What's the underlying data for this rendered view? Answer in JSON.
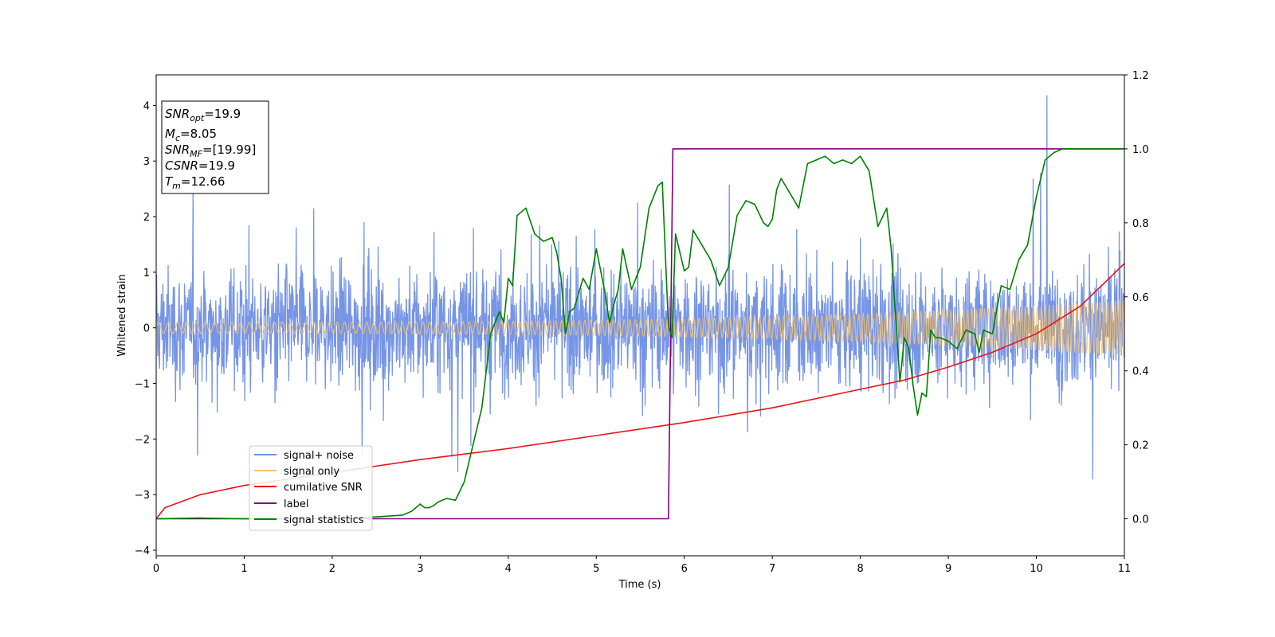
{
  "chart_data": {
    "type": "line",
    "xlabel": "Time (s)",
    "ylabel": "Whitened strain",
    "xlim": [
      0,
      11
    ],
    "ylim": [
      -4.1,
      4.55
    ],
    "y2lim": [
      -0.1,
      1.2
    ],
    "xticks": [
      0,
      1,
      2,
      3,
      4,
      5,
      6,
      7,
      8,
      9,
      10,
      11
    ],
    "yticks": [
      -4,
      -3,
      -2,
      -1,
      0,
      1,
      2,
      3,
      4
    ],
    "y2ticks": [
      "0.0",
      "0.2",
      "0.4",
      "0.6",
      "0.8",
      "1.0",
      "1.2"
    ],
    "grid": false,
    "legend_position": "lower-left",
    "annotation": [
      {
        "base": "SNR",
        "sub": "opt",
        "value": "=19.9"
      },
      {
        "base": "M",
        "sub": "c",
        "value": "=8.05"
      },
      {
        "base": "SNR",
        "sub": "MF",
        "value": "=[19.99]"
      },
      {
        "base": "CSNR",
        "sub": "",
        "value": "=19.9"
      },
      {
        "base": "T",
        "sub": "m",
        "value": "=12.66"
      }
    ],
    "series": [
      {
        "name": "signal+ noise",
        "color": "#6f8fe6",
        "axis": "left",
        "kind": "whitened noisy strain, amplitude about ±1.5 with spikes to about ±3.7, max 4.18 near t=10.1"
      },
      {
        "name": "signal only",
        "color": "#f5c26b",
        "axis": "left",
        "kind": "chirp oscillation, amplitude 0.1 growing to 0.5 at t=11"
      },
      {
        "name": "cumilative SNR",
        "color": "#e8141a",
        "axis": "right",
        "x": [
          0,
          0.1,
          0.5,
          1,
          2,
          3,
          4,
          5,
          6,
          7,
          8,
          8.5,
          9,
          9.5,
          10,
          10.5,
          11
        ],
        "values": [
          0.0,
          0.03,
          0.065,
          0.09,
          0.125,
          0.16,
          0.19,
          0.225,
          0.26,
          0.3,
          0.35,
          0.375,
          0.41,
          0.45,
          0.5,
          0.575,
          0.69
        ]
      },
      {
        "name": "label",
        "color": "#800080",
        "axis": "right",
        "x": [
          0,
          5.82,
          5.87,
          11
        ],
        "values": [
          0.0,
          0.0,
          1.0,
          1.0
        ]
      },
      {
        "name": "signal statistics",
        "color": "#008000",
        "axis": "right",
        "x": [
          0,
          0.5,
          1,
          1.5,
          2,
          2.5,
          2.8,
          2.9,
          3.0,
          3.05,
          3.1,
          3.15,
          3.2,
          3.3,
          3.4,
          3.5,
          3.6,
          3.7,
          3.8,
          3.9,
          3.95,
          4.0,
          4.05,
          4.1,
          4.2,
          4.3,
          4.4,
          4.5,
          4.55,
          4.6,
          4.65,
          4.7,
          4.75,
          4.85,
          4.92,
          5.0,
          5.05,
          5.1,
          5.15,
          5.2,
          5.25,
          5.3,
          5.4,
          5.5,
          5.6,
          5.7,
          5.75,
          5.82,
          5.86,
          5.9,
          6.0,
          6.05,
          6.1,
          6.2,
          6.3,
          6.4,
          6.5,
          6.6,
          6.7,
          6.8,
          6.9,
          6.95,
          7.0,
          7.05,
          7.1,
          7.2,
          7.3,
          7.4,
          7.5,
          7.6,
          7.7,
          7.8,
          7.9,
          8.0,
          8.1,
          8.2,
          8.3,
          8.35,
          8.4,
          8.45,
          8.5,
          8.55,
          8.6,
          8.65,
          8.7,
          8.75,
          8.8,
          8.85,
          8.9,
          9.0,
          9.1,
          9.2,
          9.3,
          9.35,
          9.4,
          9.5,
          9.6,
          9.7,
          9.8,
          9.9,
          10.0,
          10.1,
          10.2,
          10.3,
          10.5,
          11
        ],
        "values": [
          0.0,
          0.002,
          0.0,
          0.0,
          0.0,
          0.005,
          0.01,
          0.02,
          0.04,
          0.03,
          0.03,
          0.035,
          0.045,
          0.055,
          0.05,
          0.1,
          0.2,
          0.3,
          0.5,
          0.56,
          0.53,
          0.65,
          0.63,
          0.82,
          0.84,
          0.77,
          0.75,
          0.76,
          0.72,
          0.65,
          0.5,
          0.56,
          0.57,
          0.65,
          0.62,
          0.73,
          0.67,
          0.61,
          0.53,
          0.58,
          0.62,
          0.73,
          0.62,
          0.68,
          0.84,
          0.9,
          0.91,
          0.52,
          0.49,
          0.77,
          0.67,
          0.68,
          0.78,
          0.74,
          0.7,
          0.63,
          0.68,
          0.82,
          0.86,
          0.85,
          0.8,
          0.79,
          0.81,
          0.89,
          0.92,
          0.88,
          0.84,
          0.96,
          0.97,
          0.98,
          0.96,
          0.97,
          0.96,
          0.98,
          0.94,
          0.79,
          0.84,
          0.73,
          0.55,
          0.37,
          0.49,
          0.46,
          0.36,
          0.28,
          0.34,
          0.33,
          0.51,
          0.49,
          0.49,
          0.48,
          0.46,
          0.51,
          0.5,
          0.45,
          0.51,
          0.5,
          0.63,
          0.62,
          0.7,
          0.74,
          0.87,
          0.97,
          0.99,
          1.0,
          1.0,
          1.0
        ]
      }
    ]
  }
}
